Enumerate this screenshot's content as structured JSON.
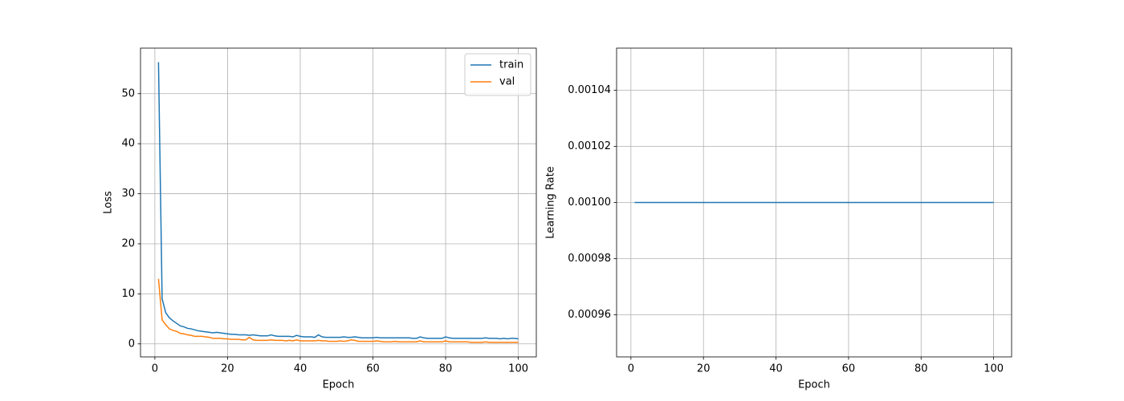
{
  "chart_data": [
    {
      "type": "line",
      "xlabel": "Epoch",
      "ylabel": "Loss",
      "x": [
        1,
        2,
        3,
        4,
        5,
        6,
        7,
        8,
        9,
        10,
        11,
        12,
        13,
        14,
        15,
        16,
        17,
        18,
        19,
        20,
        21,
        22,
        23,
        24,
        25,
        26,
        27,
        28,
        29,
        30,
        31,
        32,
        33,
        34,
        35,
        36,
        37,
        38,
        39,
        40,
        41,
        42,
        43,
        44,
        45,
        46,
        47,
        48,
        49,
        50,
        51,
        52,
        53,
        54,
        55,
        56,
        57,
        58,
        59,
        60,
        61,
        62,
        63,
        64,
        65,
        66,
        67,
        68,
        69,
        70,
        71,
        72,
        73,
        74,
        75,
        76,
        77,
        78,
        79,
        80,
        81,
        82,
        83,
        84,
        85,
        86,
        87,
        88,
        89,
        90,
        91,
        92,
        93,
        94,
        95,
        96,
        97,
        98,
        99,
        100
      ],
      "series": [
        {
          "name": "train",
          "color": "#1f77b4",
          "values": [
            56.3,
            9.0,
            6.2,
            5.2,
            4.6,
            4.1,
            3.6,
            3.4,
            3.1,
            3.0,
            2.8,
            2.6,
            2.5,
            2.4,
            2.3,
            2.2,
            2.3,
            2.2,
            2.1,
            2.0,
            1.9,
            1.9,
            1.8,
            1.8,
            1.8,
            1.7,
            1.8,
            1.7,
            1.6,
            1.6,
            1.6,
            1.8,
            1.6,
            1.5,
            1.5,
            1.5,
            1.5,
            1.4,
            1.7,
            1.5,
            1.4,
            1.4,
            1.4,
            1.3,
            1.8,
            1.4,
            1.3,
            1.3,
            1.3,
            1.3,
            1.3,
            1.4,
            1.3,
            1.3,
            1.4,
            1.3,
            1.2,
            1.2,
            1.2,
            1.2,
            1.3,
            1.2,
            1.2,
            1.2,
            1.2,
            1.2,
            1.2,
            1.2,
            1.2,
            1.2,
            1.1,
            1.1,
            1.4,
            1.2,
            1.1,
            1.1,
            1.1,
            1.1,
            1.1,
            1.4,
            1.2,
            1.1,
            1.1,
            1.1,
            1.1,
            1.1,
            1.1,
            1.1,
            1.1,
            1.1,
            1.2,
            1.1,
            1.1,
            1.1,
            1.0,
            1.1,
            1.0,
            1.1,
            1.1,
            1.0
          ]
        },
        {
          "name": "val",
          "color": "#ff7f0e",
          "values": [
            13.0,
            4.8,
            3.8,
            3.0,
            2.7,
            2.5,
            2.1,
            2.0,
            1.8,
            1.7,
            1.5,
            1.5,
            1.5,
            1.4,
            1.3,
            1.1,
            1.1,
            1.1,
            1.0,
            1.0,
            0.9,
            0.9,
            0.9,
            0.8,
            0.8,
            1.3,
            0.8,
            0.7,
            0.7,
            0.7,
            0.7,
            0.8,
            0.7,
            0.7,
            0.7,
            0.6,
            0.7,
            0.6,
            0.8,
            0.6,
            0.6,
            0.6,
            0.6,
            0.6,
            0.7,
            0.6,
            0.6,
            0.5,
            0.5,
            0.5,
            0.6,
            0.5,
            0.6,
            0.8,
            0.7,
            0.5,
            0.5,
            0.5,
            0.5,
            0.5,
            0.6,
            0.5,
            0.4,
            0.4,
            0.4,
            0.5,
            0.4,
            0.4,
            0.4,
            0.4,
            0.4,
            0.4,
            0.6,
            0.4,
            0.4,
            0.4,
            0.4,
            0.4,
            0.4,
            0.6,
            0.4,
            0.4,
            0.4,
            0.4,
            0.4,
            0.4,
            0.3,
            0.3,
            0.3,
            0.3,
            0.4,
            0.3,
            0.3,
            0.3,
            0.3,
            0.3,
            0.3,
            0.3,
            0.3,
            0.3
          ]
        }
      ],
      "xlim": [
        -3.95,
        104.95
      ],
      "xticks": [
        0,
        20,
        40,
        60,
        80,
        100
      ],
      "ylim": [
        -2.6,
        59.1
      ],
      "yticks": [
        0,
        10,
        20,
        30,
        40,
        50
      ],
      "grid": true,
      "legend": "upper right"
    },
    {
      "type": "line",
      "xlabel": "Epoch",
      "ylabel": "Learning Rate",
      "x": [
        1,
        2,
        3,
        4,
        5,
        6,
        7,
        8,
        9,
        10,
        11,
        12,
        13,
        14,
        15,
        16,
        17,
        18,
        19,
        20,
        21,
        22,
        23,
        24,
        25,
        26,
        27,
        28,
        29,
        30,
        31,
        32,
        33,
        34,
        35,
        36,
        37,
        38,
        39,
        40,
        41,
        42,
        43,
        44,
        45,
        46,
        47,
        48,
        49,
        50,
        51,
        52,
        53,
        54,
        55,
        56,
        57,
        58,
        59,
        60,
        61,
        62,
        63,
        64,
        65,
        66,
        67,
        68,
        69,
        70,
        71,
        72,
        73,
        74,
        75,
        76,
        77,
        78,
        79,
        80,
        81,
        82,
        83,
        84,
        85,
        86,
        87,
        88,
        89,
        90,
        91,
        92,
        93,
        94,
        95,
        96,
        97,
        98,
        99,
        100
      ],
      "series": [
        {
          "color": "#1f77b4",
          "values": [
            0.001,
            0.001,
            0.001,
            0.001,
            0.001,
            0.001,
            0.001,
            0.001,
            0.001,
            0.001,
            0.001,
            0.001,
            0.001,
            0.001,
            0.001,
            0.001,
            0.001,
            0.001,
            0.001,
            0.001,
            0.001,
            0.001,
            0.001,
            0.001,
            0.001,
            0.001,
            0.001,
            0.001,
            0.001,
            0.001,
            0.001,
            0.001,
            0.001,
            0.001,
            0.001,
            0.001,
            0.001,
            0.001,
            0.001,
            0.001,
            0.001,
            0.001,
            0.001,
            0.001,
            0.001,
            0.001,
            0.001,
            0.001,
            0.001,
            0.001,
            0.001,
            0.001,
            0.001,
            0.001,
            0.001,
            0.001,
            0.001,
            0.001,
            0.001,
            0.001,
            0.001,
            0.001,
            0.001,
            0.001,
            0.001,
            0.001,
            0.001,
            0.001,
            0.001,
            0.001,
            0.001,
            0.001,
            0.001,
            0.001,
            0.001,
            0.001,
            0.001,
            0.001,
            0.001,
            0.001,
            0.001,
            0.001,
            0.001,
            0.001,
            0.001,
            0.001,
            0.001,
            0.001,
            0.001,
            0.001,
            0.001,
            0.001,
            0.001,
            0.001,
            0.001,
            0.001,
            0.001,
            0.001,
            0.001,
            0.001
          ]
        }
      ],
      "xlim": [
        -3.95,
        104.95
      ],
      "xticks": [
        0,
        20,
        40,
        60,
        80,
        100
      ],
      "ylim": [
        0.000945,
        0.001055
      ],
      "yticks": [
        0.00096,
        0.00098,
        {
          "value": 0.001,
          "label": "0.00100"
        },
        0.00102,
        0.00104
      ],
      "grid": true
    }
  ]
}
